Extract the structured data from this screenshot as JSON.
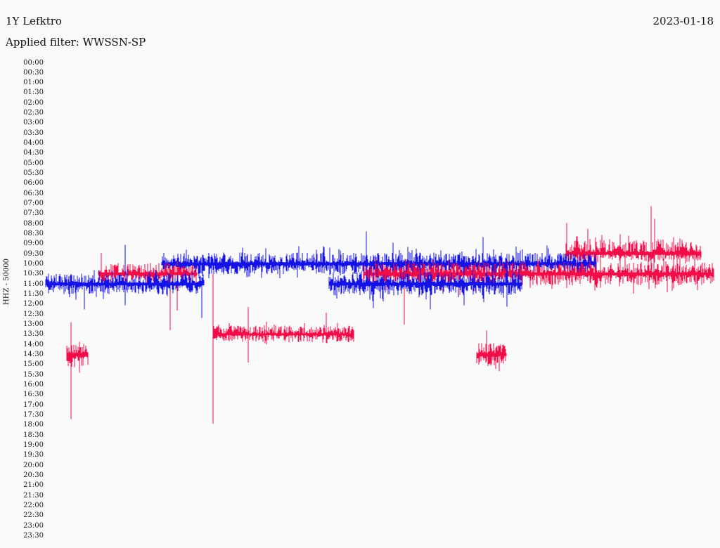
{
  "header": {
    "station": "1Y Lefktro",
    "date": "2023-01-18",
    "filter": "Applied filter: WWSSN-SP"
  },
  "axis": {
    "channel_scale": "HHZ - 50000",
    "time_labels": [
      "00:00",
      "00:30",
      "01:00",
      "01:30",
      "02:00",
      "02:30",
      "03:00",
      "03:30",
      "04:00",
      "04:30",
      "05:00",
      "05:30",
      "06:00",
      "06:30",
      "07:00",
      "07:30",
      "08:00",
      "08:30",
      "09:00",
      "09:30",
      "10:00",
      "10:30",
      "11:00",
      "11:30",
      "12:00",
      "12:30",
      "13:00",
      "13:30",
      "14:00",
      "14:30",
      "15:00",
      "15:30",
      "16:00",
      "16:30",
      "17:00",
      "17:30",
      "18:00",
      "18:30",
      "19:00",
      "19:30",
      "20:00",
      "20:30",
      "21:00",
      "21:30",
      "22:00",
      "22:30",
      "23:00",
      "23:30"
    ]
  },
  "colors": {
    "red": "#F20D49",
    "blue": "#1512E6",
    "text": "#1a1a1a",
    "background": "#FAFAFA"
  },
  "chart_data": {
    "type": "line",
    "subtype": "helicorder-dayplot",
    "title": "1Y Lefktro",
    "date": "2023-01-18",
    "filter": "WWSSN-SP",
    "ylabel": "HHZ - 50000",
    "interval_minutes": 30,
    "rows_total": 48,
    "row_order": "top-to-bottom, 00:00 first",
    "amplitude_units": "pixels about row baseline",
    "traces": [
      {
        "time": "09:30",
        "row": 19,
        "color": "red",
        "segments": [
          {
            "x0": 0.779,
            "x1": 0.981,
            "amp_up": 13,
            "amp_down": 6,
            "peak_up": 26,
            "peak_down": 14
          }
        ],
        "spikes": [
          {
            "x": 0.7805,
            "up": 44,
            "down": 8
          },
          {
            "x": 0.795,
            "up": 25,
            "down": 5
          },
          {
            "x": 0.812,
            "up": 36,
            "down": 10
          },
          {
            "x": 0.83,
            "up": 20,
            "down": 48
          },
          {
            "x": 0.86,
            "up": 28,
            "down": 40
          },
          {
            "x": 0.9066,
            "up": 68,
            "down": 22
          },
          {
            "x": 0.912,
            "up": 50,
            "down": 12
          },
          {
            "x": 0.94,
            "up": 24,
            "down": 30
          }
        ]
      },
      {
        "time": "10:00",
        "row": 20,
        "color": "blue",
        "segments": [
          {
            "x0": 0.174,
            "x1": 0.824,
            "amp_up": 10,
            "amp_down": 9,
            "peak_up": 24,
            "peak_down": 20
          }
        ],
        "spikes": [
          {
            "x": 0.21,
            "up": 20,
            "down": 28
          },
          {
            "x": 0.48,
            "up": 46,
            "down": 10
          },
          {
            "x": 0.52,
            "up": 30,
            "down": 16
          },
          {
            "x": 0.655,
            "up": 38,
            "down": 12
          },
          {
            "x": 0.75,
            "up": 26,
            "down": 18
          }
        ]
      },
      {
        "time": "10:30",
        "row": 21,
        "color": "red",
        "segments": [
          {
            "x0": 0.079,
            "x1": 0.226,
            "amp_up": 9,
            "amp_down": 8,
            "peak_up": 18,
            "peak_down": 16
          },
          {
            "x0": 0.476,
            "x1": 1.0,
            "amp_up": 10,
            "amp_down": 10,
            "peak_up": 22,
            "peak_down": 24
          }
        ],
        "spikes": [
          {
            "x": 0.083,
            "up": 30,
            "down": 6
          },
          {
            "x": 0.186,
            "up": 10,
            "down": 80
          },
          {
            "x": 0.197,
            "up": 8,
            "down": 52
          },
          {
            "x": 0.537,
            "up": 10,
            "down": 72
          },
          {
            "x": 0.62,
            "up": 14,
            "down": 30
          },
          {
            "x": 0.88,
            "up": 16,
            "down": 28
          },
          {
            "x": 0.93,
            "up": 14,
            "down": 26
          }
        ]
      },
      {
        "time": "11:00",
        "row": 22,
        "color": "blue",
        "segments": [
          {
            "x0": 0.0,
            "x1": 0.237,
            "amp_up": 9,
            "amp_down": 9,
            "peak_up": 20,
            "peak_down": 22
          },
          {
            "x0": 0.424,
            "x1": 0.713,
            "amp_up": 10,
            "amp_down": 10,
            "peak_up": 26,
            "peak_down": 26
          }
        ],
        "spikes": [
          {
            "x": 0.058,
            "up": 12,
            "down": 36
          },
          {
            "x": 0.119,
            "up": 56,
            "down": 30
          },
          {
            "x": 0.234,
            "up": 10,
            "down": 48
          },
          {
            "x": 0.49,
            "up": 20,
            "down": 34
          },
          {
            "x": 0.576,
            "up": 18,
            "down": 36
          },
          {
            "x": 0.626,
            "up": 40,
            "down": 30
          },
          {
            "x": 0.69,
            "up": 22,
            "down": 32
          }
        ]
      },
      {
        "time": "13:30",
        "row": 27,
        "color": "red",
        "segments": [
          {
            "x0": 0.2505,
            "x1": 0.461,
            "amp_up": 8,
            "amp_down": 7,
            "peak_up": 16,
            "peak_down": 15
          }
        ],
        "spikes": [
          {
            "x": 0.2507,
            "up": 86,
            "down": 127
          },
          {
            "x": 0.303,
            "up": 39,
            "down": 40
          },
          {
            "x": 0.33,
            "up": 18,
            "down": 14
          },
          {
            "x": 0.42,
            "up": 31,
            "down": 12
          }
        ]
      },
      {
        "time": "14:30",
        "row": 29,
        "color": "red",
        "segments": [
          {
            "x0": 0.0316,
            "x1": 0.0632,
            "amp_up": 10,
            "amp_down": 11,
            "peak_up": 16,
            "peak_down": 18
          },
          {
            "x0": 0.645,
            "x1": 0.689,
            "amp_up": 11,
            "amp_down": 11,
            "peak_up": 18,
            "peak_down": 20
          }
        ],
        "spikes": [
          {
            "x": 0.0379,
            "up": 46,
            "down": 92
          },
          {
            "x": 0.0505,
            "up": 18,
            "down": 26
          },
          {
            "x": 0.66,
            "up": 34,
            "down": 10
          },
          {
            "x": 0.679,
            "up": 12,
            "down": 24
          }
        ]
      }
    ]
  }
}
